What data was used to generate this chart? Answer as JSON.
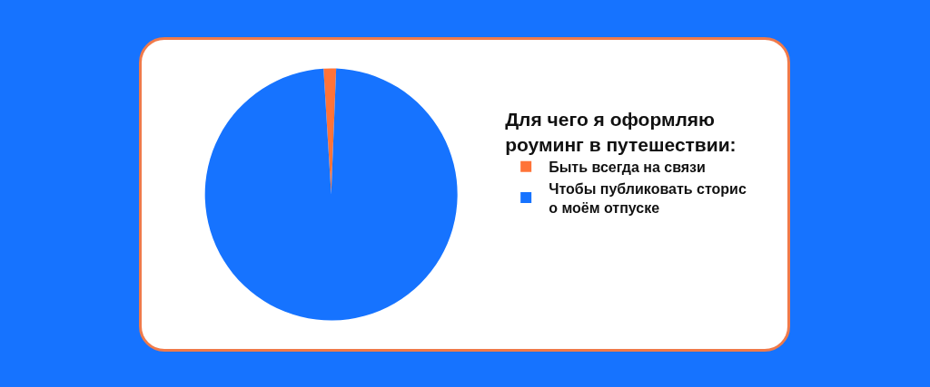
{
  "chart_data": {
    "type": "pie",
    "legend_title": "Для чего я оформляю роуминг в путешествии:",
    "categories": [
      "Быть всегда на связи",
      "Чтобы публиковать сторис о моём отпуске"
    ],
    "values": [
      1.6,
      98.4
    ],
    "colors": [
      "#ff7338",
      "#1673ff"
    ],
    "legend": "right"
  }
}
